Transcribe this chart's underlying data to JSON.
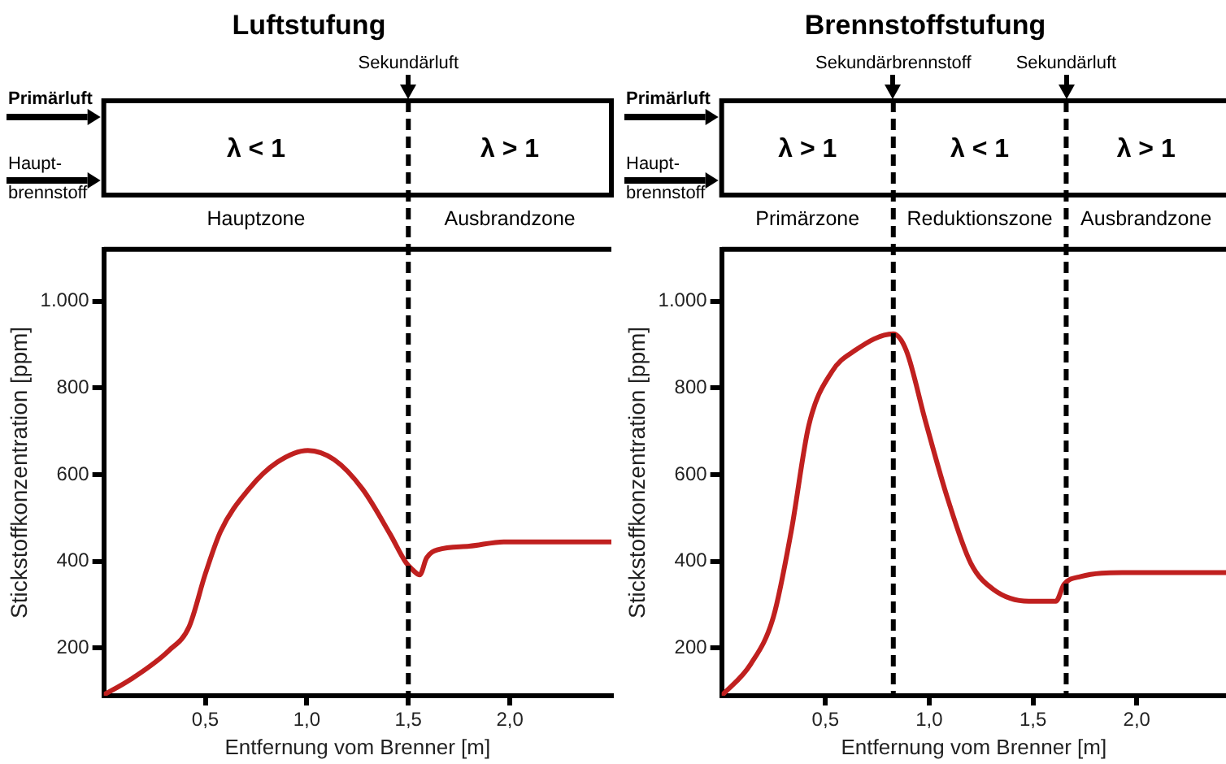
{
  "chart_data": [
    {
      "type": "line",
      "title": "Luftstufung",
      "xlabel": "Entfernung vom Brenner [m]",
      "ylabel": "Stickstoffkonzentration [ppm]",
      "color": "#c0201f",
      "marker": "none",
      "x": [
        0,
        0.13,
        0.32,
        0.42,
        0.5,
        0.575,
        0.715,
        0.855,
        1.005,
        1.134,
        1.274,
        1.41,
        1.49,
        1.52,
        1.556,
        1.59,
        1.645,
        1.8,
        1.97,
        2.14,
        2.5
      ],
      "values": [
        92,
        127,
        194,
        249,
        371,
        469,
        567,
        629,
        656,
        635,
        567,
        463,
        396,
        381,
        369,
        408,
        427,
        435,
        445,
        445,
        445
      ],
      "xlim": [
        0,
        2.5
      ],
      "ylim": [
        90,
        1120
      ],
      "xticks": [
        {
          "value": 0.5,
          "label": "0,5"
        },
        {
          "value": 1,
          "label": "1,0"
        },
        {
          "value": 1.5,
          "label": "1,5"
        },
        {
          "value": 2,
          "label": "2,0"
        }
      ],
      "yticks": [
        200,
        400,
        600,
        800,
        {
          "value": 1000,
          "label": "1.000"
        }
      ],
      "ref_lines": [
        {
          "axis": "x",
          "value": 1.5,
          "label": "Sekundärluft",
          "line_style": "dashed"
        }
      ],
      "annotations": [
        "Primärluft",
        "Haupt-brennstoff",
        "λ < 1",
        "λ > 1",
        "Hauptzone",
        "Ausbrandzone"
      ]
    },
    {
      "type": "line",
      "title": "Brennstoffstufung",
      "xlabel": "Entfernung vom Brenner [m]",
      "ylabel": "Stickstoffkonzentration [ppm]",
      "color": "#c0201f",
      "marker": "none",
      "x": [
        0,
        0.14,
        0.25,
        0.335,
        0.42,
        0.53,
        0.64,
        0.827,
        0.89,
        0.98,
        1.09,
        1.2,
        1.31,
        1.48,
        1.61,
        1.65,
        1.73,
        1.93,
        2.43
      ],
      "values": [
        90,
        163,
        273,
        469,
        714,
        837,
        886,
        925,
        886,
        727,
        543,
        396,
        335,
        308,
        308,
        347,
        365,
        374,
        374
      ],
      "xlim": [
        0,
        2.43
      ],
      "ylim": [
        90,
        1120
      ],
      "xticks": [
        {
          "value": 0.5,
          "label": "0,5"
        },
        {
          "value": 1,
          "label": "1,0"
        },
        {
          "value": 1.5,
          "label": "1,5"
        },
        {
          "value": 2,
          "label": "2,0"
        }
      ],
      "yticks": [
        200,
        400,
        600,
        800,
        {
          "value": 1000,
          "label": "1.000"
        }
      ],
      "ref_lines": [
        {
          "axis": "x",
          "value": 0.827,
          "label": "Sekundärbrennstoff",
          "line_style": "dashed"
        },
        {
          "axis": "x",
          "value": 1.66,
          "label": "Sekundärluft",
          "line_style": "dashed"
        }
      ],
      "annotations": [
        "Primärluft",
        "Haupt-brennstoff",
        "λ > 1",
        "λ < 1",
        "λ > 1",
        "Primärzone",
        "Reduktionszone",
        "Ausbrandzone"
      ]
    }
  ]
}
